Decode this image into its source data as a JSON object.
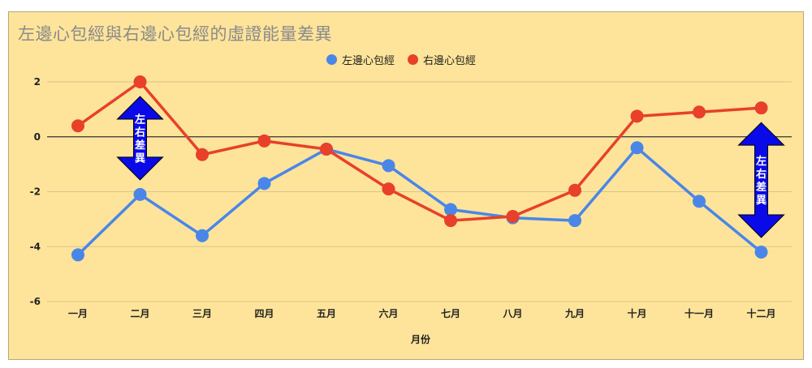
{
  "chart_data": {
    "type": "line",
    "title": "左邊心包經與右邊心包經的虛證能量差異",
    "xlabel": "月份",
    "ylabel": "",
    "categories": [
      "一月",
      "二月",
      "三月",
      "四月",
      "五月",
      "六月",
      "七月",
      "八月",
      "九月",
      "十月",
      "十一月",
      "十二月"
    ],
    "ylim": [
      -6,
      2
    ],
    "yticks": [
      2,
      0,
      -2,
      -4,
      -6
    ],
    "grid": true,
    "legend_position": "top",
    "series": [
      {
        "name": "左邊心包經",
        "color": "#4a86e8",
        "values": [
          -4.3,
          -2.1,
          -3.6,
          -1.7,
          -0.45,
          -1.05,
          -2.65,
          -2.95,
          -3.05,
          -0.4,
          -2.35,
          -4.2
        ]
      },
      {
        "name": "右邊心包經",
        "color": "#e8402a",
        "values": [
          0.4,
          2.0,
          -0.65,
          -0.15,
          -0.45,
          -1.9,
          -3.05,
          -2.9,
          -1.95,
          0.75,
          0.9,
          1.05
        ]
      }
    ],
    "annotations": [
      {
        "text": "左右差異",
        "category": "二月",
        "color": "#0a0ae8"
      },
      {
        "text": "左右差異",
        "category": "十二月",
        "color": "#0a0ae8"
      }
    ]
  }
}
